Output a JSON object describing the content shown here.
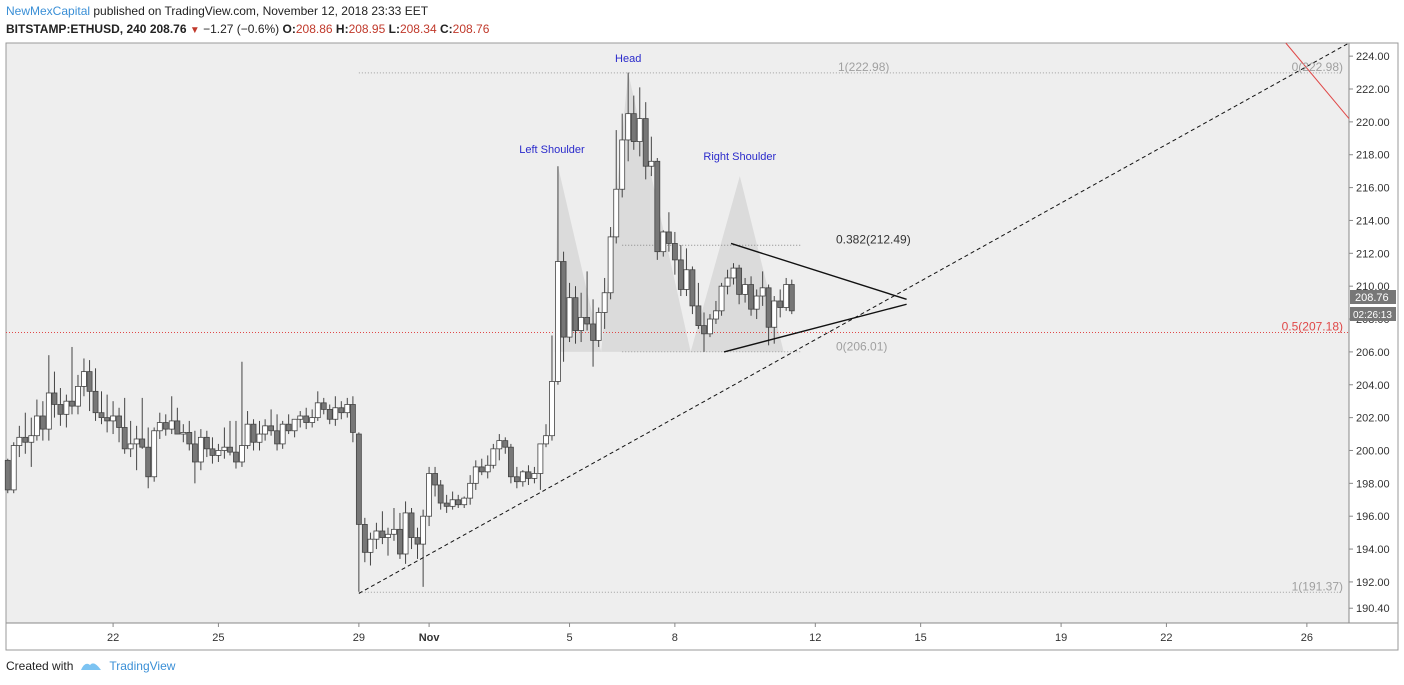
{
  "header": {
    "author": "NewMexCapital",
    "published": "published on TradingView.com, November 12, 2018 23:33 EET",
    "symbol": "BITSTAMP:ETHUSD, 240",
    "last": "208.76",
    "change": "−1.27 (−0.6%)",
    "o_label": "O:",
    "o_value": "208.86",
    "h_label": "H:",
    "h_value": "208.95",
    "l_label": "L:",
    "l_value": "208.34",
    "c_label": "C:",
    "c_value": "208.76"
  },
  "footer": {
    "created_with": "Created with",
    "brand": "TradingView"
  },
  "colors": {
    "up": "#ffffff",
    "down": "#777777",
    "wick": "#444444",
    "red": "#e04848",
    "fib_gray": "#a0a0a0",
    "annot_blue": "#2a2acb",
    "shade": "#d4d4d4",
    "plot_bg": "#eeeeee"
  },
  "chart_data": {
    "type": "candlestick",
    "title": "",
    "ylim": [
      189.5,
      224.8
    ],
    "y_ticks": [
      "190.40",
      "192.00",
      "194.00",
      "196.00",
      "198.00",
      "200.00",
      "202.00",
      "204.00",
      "206.00",
      "208.00",
      "210.00",
      "212.00",
      "214.00",
      "216.00",
      "218.00",
      "220.00",
      "222.00",
      "224.00"
    ],
    "x_ticks": [
      {
        "label": "22",
        "day": 22
      },
      {
        "label": "25",
        "day": 25
      },
      {
        "label": "29",
        "day": 29
      },
      {
        "label": "Nov",
        "day": 31
      },
      {
        "label": "5",
        "day": 35
      },
      {
        "label": "8",
        "day": 38
      },
      {
        "label": "12",
        "day": 42
      },
      {
        "label": "15",
        "day": 45
      },
      {
        "label": "19",
        "day": 49
      },
      {
        "label": "22",
        "day": 52
      },
      {
        "label": "26",
        "day": 56
      }
    ],
    "x_range_days": [
      18.95,
      57.2
    ],
    "last_price_label": "208.76",
    "countdown_label": "02:26:13",
    "candles": [
      [
        19.0,
        199.4,
        199.5,
        197.4,
        197.6
      ],
      [
        19.17,
        197.6,
        200.5,
        197.4,
        200.3
      ],
      [
        19.33,
        200.3,
        201.5,
        199.6,
        200.8
      ],
      [
        19.5,
        200.8,
        202.3,
        199.8,
        200.5
      ],
      [
        19.67,
        200.5,
        202.0,
        199.0,
        200.9
      ],
      [
        19.83,
        200.9,
        203.1,
        200.6,
        202.1
      ],
      [
        20.0,
        202.1,
        203.0,
        200.6,
        201.3
      ],
      [
        20.17,
        201.3,
        205.8,
        200.6,
        203.5
      ],
      [
        20.33,
        203.5,
        204.8,
        202.0,
        202.8
      ],
      [
        20.5,
        202.8,
        203.8,
        201.5,
        202.2
      ],
      [
        20.67,
        202.2,
        203.4,
        201.4,
        203.0
      ],
      [
        20.83,
        203.0,
        206.3,
        202.2,
        202.7
      ],
      [
        21.0,
        202.7,
        204.6,
        202.2,
        203.9
      ],
      [
        21.17,
        203.9,
        205.6,
        203.3,
        204.8
      ],
      [
        21.33,
        204.8,
        205.5,
        202.4,
        203.6
      ],
      [
        21.5,
        203.6,
        205.0,
        201.8,
        202.3
      ],
      [
        21.67,
        202.3,
        203.6,
        201.6,
        202.0
      ],
      [
        21.83,
        202.0,
        203.4,
        201.1,
        201.8
      ],
      [
        22.0,
        201.8,
        203.0,
        201.0,
        202.1
      ],
      [
        22.17,
        202.1,
        202.6,
        200.5,
        201.4
      ],
      [
        22.33,
        201.4,
        203.2,
        199.8,
        200.1
      ],
      [
        22.5,
        200.1,
        201.8,
        199.6,
        200.4
      ],
      [
        22.67,
        200.4,
        201.5,
        198.8,
        200.7
      ],
      [
        22.83,
        200.7,
        203.2,
        200.1,
        200.2
      ],
      [
        23.0,
        200.2,
        201.4,
        197.7,
        198.4
      ],
      [
        23.17,
        198.4,
        201.4,
        198.1,
        201.2
      ],
      [
        23.33,
        201.2,
        202.3,
        200.7,
        201.7
      ],
      [
        23.5,
        201.7,
        202.2,
        200.9,
        201.3
      ],
      [
        23.67,
        201.3,
        203.3,
        201.0,
        201.8
      ],
      [
        23.83,
        201.8,
        202.6,
        201.0,
        201.0
      ],
      [
        24.0,
        201.0,
        201.6,
        200.5,
        201.1
      ],
      [
        24.17,
        201.1,
        201.8,
        200.0,
        200.4
      ],
      [
        24.33,
        200.4,
        201.2,
        198.0,
        199.3
      ],
      [
        24.5,
        199.3,
        201.3,
        198.8,
        200.8
      ],
      [
        24.67,
        200.8,
        201.2,
        199.6,
        200.1
      ],
      [
        24.83,
        200.1,
        200.8,
        199.2,
        199.7
      ],
      [
        25.0,
        199.7,
        200.4,
        199.3,
        200.0
      ],
      [
        25.17,
        200.0,
        201.4,
        199.5,
        200.2
      ],
      [
        25.33,
        200.2,
        201.8,
        199.7,
        199.9
      ],
      [
        25.5,
        199.9,
        201.8,
        198.9,
        199.3
      ],
      [
        25.67,
        199.3,
        205.4,
        199.0,
        200.3
      ],
      [
        25.83,
        200.3,
        202.4,
        200.1,
        201.6
      ],
      [
        26.0,
        201.6,
        201.9,
        200.0,
        200.5
      ],
      [
        26.17,
        200.5,
        201.8,
        200.0,
        201.0
      ],
      [
        26.33,
        201.0,
        201.9,
        200.6,
        201.5
      ],
      [
        26.5,
        201.5,
        202.5,
        200.9,
        201.2
      ],
      [
        26.67,
        201.2,
        202.2,
        200.0,
        200.4
      ],
      [
        26.83,
        200.4,
        201.8,
        200.1,
        201.6
      ],
      [
        27.0,
        201.6,
        202.2,
        201.0,
        201.2
      ],
      [
        27.17,
        201.2,
        201.9,
        200.8,
        201.9
      ],
      [
        27.33,
        201.9,
        202.4,
        201.4,
        202.1
      ],
      [
        27.5,
        202.1,
        202.6,
        201.3,
        201.7
      ],
      [
        27.67,
        201.7,
        202.5,
        201.4,
        202.0
      ],
      [
        27.83,
        202.0,
        203.6,
        201.8,
        202.9
      ],
      [
        28.0,
        202.9,
        203.2,
        202.2,
        202.5
      ],
      [
        28.17,
        202.5,
        202.8,
        201.6,
        201.9
      ],
      [
        28.33,
        201.9,
        203.3,
        201.5,
        202.6
      ],
      [
        28.5,
        202.6,
        203.0,
        201.9,
        202.3
      ],
      [
        28.67,
        202.3,
        203.2,
        202.0,
        202.8
      ],
      [
        28.83,
        202.8,
        203.3,
        200.5,
        201.1
      ],
      [
        29.0,
        201.0,
        201.1,
        191.4,
        195.5
      ],
      [
        29.17,
        195.5,
        195.9,
        193.2,
        193.8
      ],
      [
        29.33,
        193.8,
        195.0,
        193.0,
        194.6
      ],
      [
        29.5,
        194.6,
        195.6,
        194.0,
        195.1
      ],
      [
        29.67,
        195.1,
        196.3,
        194.3,
        194.7
      ],
      [
        29.83,
        194.7,
        195.3,
        193.6,
        194.9
      ],
      [
        30.0,
        194.9,
        196.5,
        194.5,
        195.2
      ],
      [
        30.17,
        195.2,
        196.2,
        193.4,
        193.7
      ],
      [
        30.33,
        193.7,
        196.9,
        193.1,
        196.2
      ],
      [
        30.5,
        196.2,
        196.5,
        194.0,
        194.7
      ],
      [
        30.67,
        194.7,
        195.3,
        193.4,
        194.3
      ],
      [
        30.83,
        194.3,
        196.4,
        191.7,
        196.0
      ],
      [
        31.0,
        196.0,
        199.0,
        195.4,
        198.6
      ],
      [
        31.17,
        198.6,
        199.0,
        197.2,
        197.9
      ],
      [
        31.33,
        197.9,
        198.2,
        196.4,
        196.8
      ],
      [
        31.5,
        196.8,
        197.3,
        196.2,
        196.6
      ],
      [
        31.67,
        196.6,
        197.5,
        196.4,
        197.0
      ],
      [
        31.83,
        197.0,
        197.3,
        196.5,
        196.7
      ],
      [
        32.0,
        196.7,
        197.2,
        196.5,
        197.1
      ],
      [
        32.17,
        197.1,
        198.5,
        196.7,
        198.0
      ],
      [
        32.33,
        198.0,
        199.4,
        197.6,
        199.0
      ],
      [
        32.5,
        199.0,
        199.5,
        198.5,
        198.7
      ],
      [
        32.67,
        198.7,
        199.7,
        198.3,
        199.1
      ],
      [
        32.83,
        199.1,
        200.4,
        198.9,
        200.1
      ],
      [
        33.0,
        200.1,
        201.0,
        199.4,
        200.6
      ],
      [
        33.17,
        200.6,
        200.8,
        199.8,
        200.2
      ],
      [
        33.33,
        200.2,
        200.4,
        198.0,
        198.4
      ],
      [
        33.5,
        198.4,
        199.0,
        197.7,
        198.1
      ],
      [
        33.67,
        198.1,
        198.8,
        197.8,
        198.7
      ],
      [
        33.83,
        198.7,
        199.1,
        197.9,
        198.3
      ],
      [
        34.0,
        198.3,
        199.0,
        198.0,
        198.6
      ],
      [
        34.17,
        198.6,
        200.4,
        197.6,
        200.4
      ],
      [
        34.33,
        200.4,
        201.6,
        200.2,
        200.9
      ],
      [
        34.5,
        200.9,
        207.0,
        200.6,
        204.2
      ],
      [
        34.67,
        204.2,
        217.3,
        204.0,
        211.5
      ],
      [
        34.83,
        211.5,
        212.1,
        205.4,
        206.9
      ],
      [
        35.0,
        206.9,
        210.2,
        206.6,
        209.3
      ],
      [
        35.17,
        209.3,
        210.0,
        206.5,
        207.3
      ],
      [
        35.33,
        207.3,
        209.6,
        206.6,
        208.1
      ],
      [
        35.5,
        208.1,
        210.9,
        207.3,
        207.7
      ],
      [
        35.67,
        207.7,
        209.2,
        205.1,
        206.7
      ],
      [
        35.83,
        206.7,
        208.7,
        206.3,
        208.4
      ],
      [
        36.0,
        208.4,
        210.5,
        207.4,
        209.6
      ],
      [
        36.17,
        209.6,
        213.6,
        209.2,
        213.0
      ],
      [
        36.33,
        213.0,
        219.5,
        212.6,
        215.9
      ],
      [
        36.5,
        215.9,
        220.5,
        215.4,
        218.9
      ],
      [
        36.67,
        218.9,
        223.0,
        217.6,
        220.5
      ],
      [
        36.83,
        220.5,
        221.6,
        218.3,
        218.8
      ],
      [
        37.0,
        218.8,
        222.1,
        217.9,
        220.2
      ],
      [
        37.17,
        220.2,
        221.2,
        216.5,
        217.3
      ],
      [
        37.33,
        217.3,
        219.1,
        216.7,
        217.6
      ],
      [
        37.5,
        217.6,
        217.8,
        211.6,
        212.1
      ],
      [
        37.67,
        212.1,
        213.4,
        211.8,
        213.3
      ],
      [
        37.83,
        213.3,
        214.5,
        212.1,
        212.6
      ],
      [
        38.0,
        212.6,
        213.3,
        210.7,
        211.6
      ],
      [
        38.17,
        211.6,
        212.5,
        209.4,
        209.8
      ],
      [
        38.33,
        209.8,
        212.3,
        209.4,
        211.0
      ],
      [
        38.5,
        211.0,
        211.2,
        208.3,
        208.8
      ],
      [
        38.67,
        208.8,
        210.2,
        207.4,
        207.6
      ],
      [
        38.83,
        207.6,
        208.4,
        206.0,
        207.1
      ],
      [
        39.0,
        207.1,
        208.3,
        206.9,
        208.0
      ],
      [
        39.17,
        208.0,
        209.1,
        207.7,
        208.5
      ],
      [
        39.33,
        208.5,
        210.2,
        208.2,
        210.0
      ],
      [
        39.5,
        210.0,
        211.0,
        209.5,
        210.5
      ],
      [
        39.67,
        210.5,
        211.4,
        210.1,
        211.1
      ],
      [
        39.83,
        211.1,
        211.3,
        208.9,
        209.5
      ],
      [
        40.0,
        209.5,
        210.5,
        209.0,
        210.1
      ],
      [
        40.17,
        210.1,
        210.6,
        208.2,
        208.6
      ],
      [
        40.33,
        208.6,
        209.8,
        208.0,
        209.4
      ],
      [
        40.5,
        209.4,
        210.9,
        208.8,
        209.9
      ],
      [
        40.67,
        209.9,
        210.1,
        206.4,
        207.5
      ],
      [
        40.83,
        207.5,
        209.4,
        206.5,
        209.1
      ],
      [
        41.0,
        209.1,
        209.8,
        208.1,
        208.7
      ],
      [
        41.17,
        208.7,
        210.5,
        208.5,
        210.1
      ],
      [
        41.33,
        210.1,
        210.4,
        208.3,
        208.5
      ]
    ],
    "annotations": {
      "pattern": [
        "Left Shoulder",
        "Head",
        "Right Shoulder"
      ],
      "fib_left_top": "1(222.98)",
      "fib_right_top": "0(222.98)",
      "fib_0382": "0.382(212.49)",
      "fib_05": "0.5(207.18)",
      "fib_0_mid": "0(206.01)",
      "fib_1_bottom": "1(191.37)"
    }
  }
}
